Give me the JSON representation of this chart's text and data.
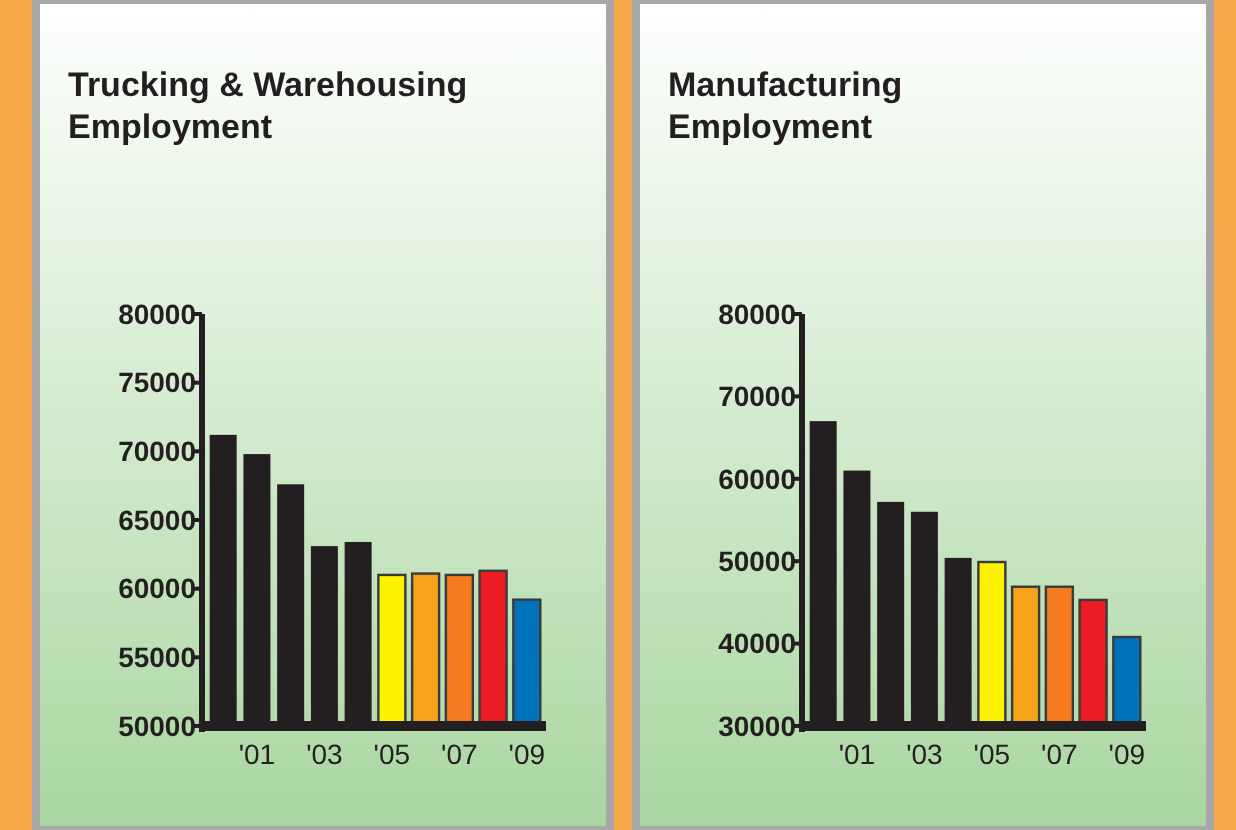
{
  "chart_data": [
    {
      "type": "bar",
      "title": "Trucking & Warehousing Employment",
      "categories": [
        null,
        "'01",
        null,
        "'03",
        null,
        "'05",
        null,
        "'07",
        null,
        "'09"
      ],
      "values": [
        71200,
        69800,
        67600,
        63100,
        63400,
        61000,
        61100,
        61000,
        61300,
        59200
      ],
      "colors": [
        "#231f20",
        "#231f20",
        "#231f20",
        "#231f20",
        "#231f20",
        "#fff200",
        "#f7a21b",
        "#f47b20",
        "#ed1c24",
        "#0072bc"
      ],
      "ylim": [
        50000,
        80000
      ],
      "yticks": [
        50000,
        55000,
        60000,
        65000,
        70000,
        75000,
        80000
      ],
      "grid": false
    },
    {
      "type": "bar",
      "title": "Manufacturing Employment",
      "categories": [
        null,
        "'01",
        null,
        "'03",
        null,
        "'05",
        null,
        "'07",
        null,
        "'09"
      ],
      "values": [
        67000,
        61000,
        57200,
        56000,
        50400,
        49900,
        46900,
        46900,
        45300,
        40800
      ],
      "colors": [
        "#231f20",
        "#231f20",
        "#231f20",
        "#231f20",
        "#231f20",
        "#fff200",
        "#f7a21b",
        "#f47b20",
        "#ed1c24",
        "#0072bc"
      ],
      "ylim": [
        30000,
        80000
      ],
      "yticks": [
        30000,
        40000,
        50000,
        60000,
        70000,
        80000
      ],
      "grid": false
    }
  ]
}
